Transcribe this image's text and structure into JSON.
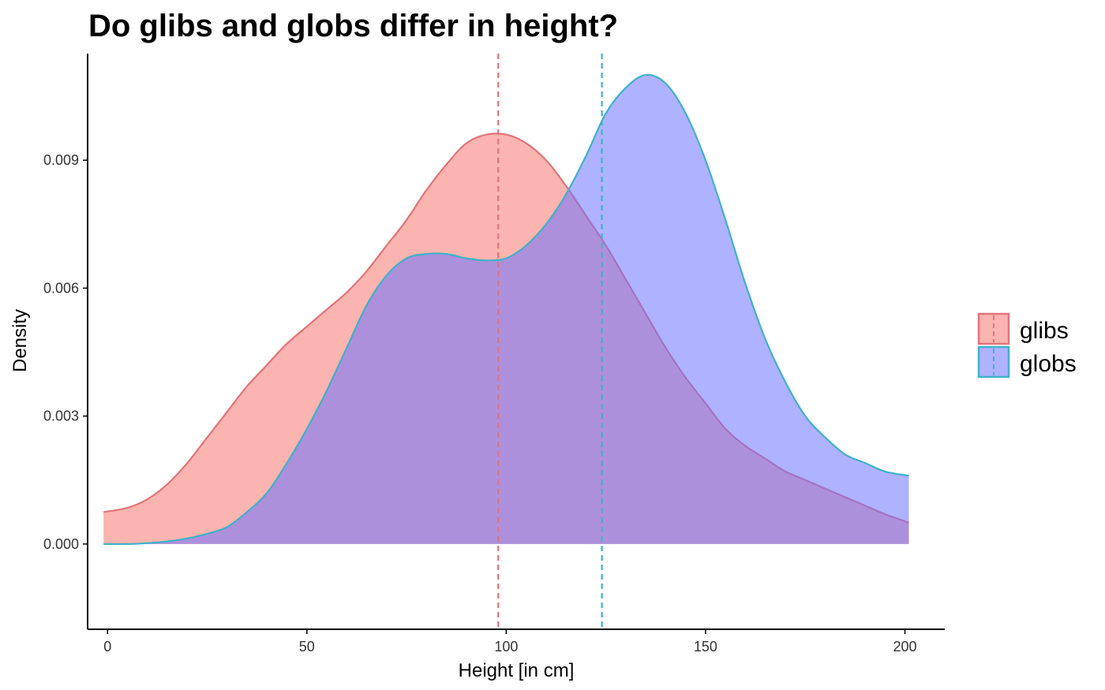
{
  "chart_data": {
    "type": "area",
    "title": "Do glibs and globs differ in height?",
    "xlabel": "Height [in cm]",
    "ylabel": "Density",
    "xlim": [
      -5,
      210
    ],
    "ylim": [
      -0.002,
      0.0115
    ],
    "x_ticks": [
      0,
      50,
      100,
      150,
      200
    ],
    "x_tick_labels": [
      "0",
      "50",
      "100",
      "150",
      "200"
    ],
    "y_ticks": [
      0.0,
      0.003,
      0.006,
      0.009
    ],
    "y_tick_labels": [
      "0.000",
      "0.003",
      "0.006",
      "0.009"
    ],
    "grid": false,
    "legend_position": "right",
    "series": [
      {
        "name": "glibs",
        "fill": "#f8766d",
        "line": "#e0747a",
        "mean": 98,
        "x": [
          -1,
          5,
          10,
          15,
          20,
          25,
          30,
          35,
          40,
          45,
          50,
          55,
          60,
          65,
          70,
          75,
          80,
          85,
          90,
          95,
          100,
          105,
          110,
          115,
          120,
          125,
          130,
          135,
          140,
          145,
          150,
          155,
          160,
          165,
          170,
          175,
          180,
          185,
          190,
          195,
          201
        ],
        "y": [
          0.00075,
          0.00085,
          0.00105,
          0.0014,
          0.0019,
          0.0025,
          0.0031,
          0.0037,
          0.0042,
          0.0047,
          0.0051,
          0.0055,
          0.0059,
          0.0064,
          0.007,
          0.0076,
          0.0083,
          0.0089,
          0.0094,
          0.0096,
          0.0096,
          0.0094,
          0.009,
          0.0084,
          0.0077,
          0.007,
          0.0062,
          0.0054,
          0.0046,
          0.0039,
          0.0033,
          0.0027,
          0.0023,
          0.002,
          0.0017,
          0.0015,
          0.0013,
          0.0011,
          0.0009,
          0.0007,
          0.0005
        ]
      },
      {
        "name": "globs",
        "fill": "#6d73ff",
        "line": "#3fb1c9",
        "mean": 124,
        "x": [
          -1,
          5,
          10,
          15,
          20,
          25,
          30,
          35,
          40,
          45,
          50,
          55,
          60,
          65,
          70,
          75,
          80,
          85,
          90,
          95,
          100,
          105,
          110,
          115,
          120,
          125,
          130,
          135,
          140,
          145,
          150,
          155,
          160,
          165,
          170,
          175,
          180,
          185,
          190,
          195,
          201
        ],
        "y": [
          0.0,
          0.0,
          2e-05,
          6e-05,
          0.00013,
          0.00024,
          0.0004,
          0.00075,
          0.0012,
          0.0019,
          0.0027,
          0.0036,
          0.0046,
          0.0056,
          0.0063,
          0.0067,
          0.0068,
          0.0068,
          0.0067,
          0.00665,
          0.0067,
          0.007,
          0.0075,
          0.0082,
          0.0091,
          0.0101,
          0.0107,
          0.011,
          0.0108,
          0.0101,
          0.009,
          0.0076,
          0.0061,
          0.0048,
          0.0038,
          0.003,
          0.0025,
          0.0021,
          0.0019,
          0.0017,
          0.0016
        ]
      }
    ]
  }
}
